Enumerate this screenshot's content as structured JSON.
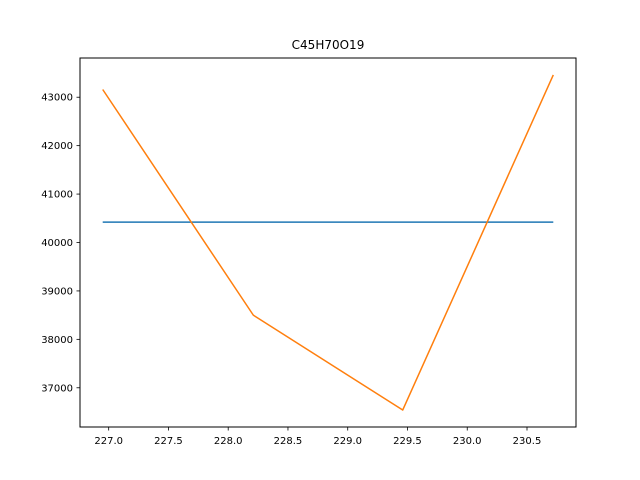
{
  "chart_data": {
    "type": "line",
    "title": "C45H70O19",
    "xlabel": "",
    "ylabel": "",
    "xlim": [
      226.76,
      230.91
    ],
    "ylim": [
      36190,
      43810
    ],
    "x_ticks": [
      227.0,
      227.5,
      228.0,
      228.5,
      229.0,
      229.5,
      230.0,
      230.5
    ],
    "x_tick_labels": [
      "227.0",
      "227.5",
      "228.0",
      "228.5",
      "229.0",
      "229.5",
      "230.0",
      "230.5"
    ],
    "y_ticks": [
      37000,
      38000,
      39000,
      40000,
      41000,
      42000,
      43000
    ],
    "y_tick_labels": [
      "37000",
      "38000",
      "39000",
      "40000",
      "41000",
      "42000",
      "43000"
    ],
    "grid": false,
    "series": [
      {
        "color": "#1f77b4",
        "x": [
          226.95,
          228.21,
          229.46,
          230.72
        ],
        "values": [
          40420,
          40420,
          40420,
          40420
        ]
      },
      {
        "color": "#ff7f0e",
        "x": [
          226.95,
          228.21,
          229.46,
          230.72
        ],
        "values": [
          43160,
          38500,
          36540,
          43460
        ]
      }
    ]
  }
}
